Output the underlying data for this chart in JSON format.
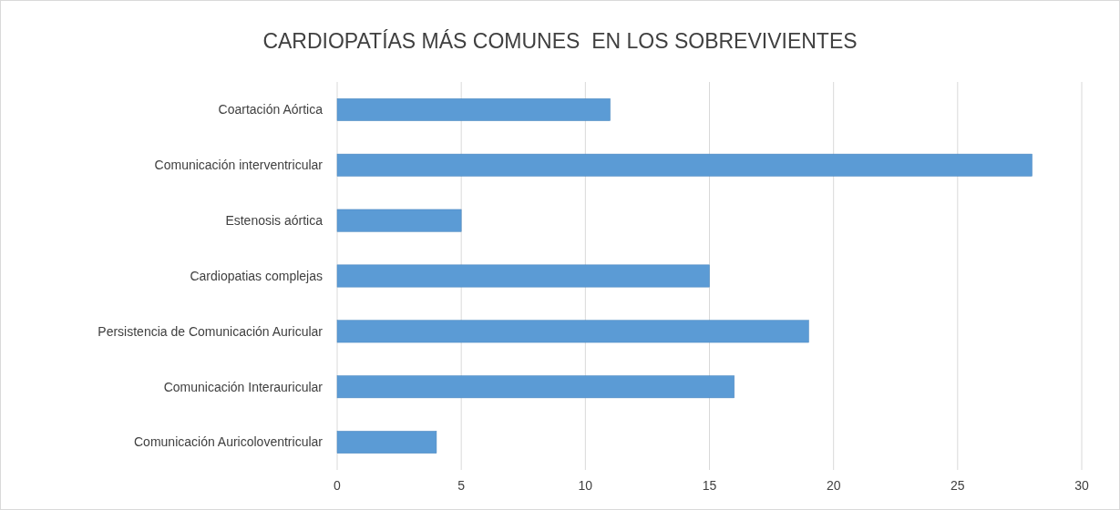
{
  "chart_data": {
    "type": "bar",
    "orientation": "horizontal",
    "title": "CARDIOPATÍAS MÁS COMUNES  EN LOS SOBREVIVIENTES",
    "categories": [
      "Coartación Aórtica",
      "Comunicación interventricular",
      "Estenosis aórtica",
      "Cardiopatias complejas",
      "Persistencia de Comunicación Auricular",
      "Comunicación Interauricular",
      "Comunicación Auricoloventricular"
    ],
    "values": [
      11,
      28,
      5,
      15,
      19,
      16,
      4
    ],
    "color": "#5b9bd5",
    "xlim": [
      0,
      30
    ],
    "xticks": [
      0,
      5,
      10,
      15,
      20,
      25,
      30
    ],
    "grid": "x"
  }
}
